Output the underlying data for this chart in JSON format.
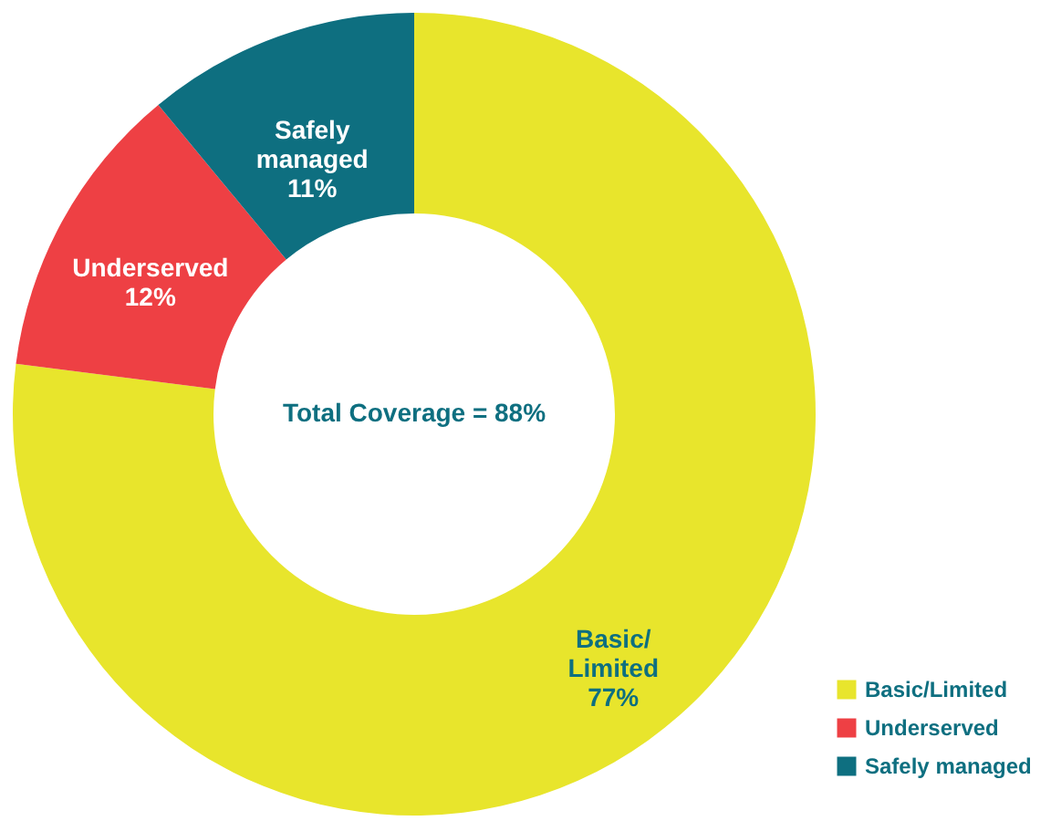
{
  "chart_data": {
    "type": "donut",
    "categories": [
      "Basic/Limited",
      "Underserved",
      "Safely managed"
    ],
    "values": [
      77,
      12,
      11
    ],
    "colors": [
      "#e8e52c",
      "#ee4044",
      "#0e6f80"
    ],
    "value_labels": [
      "77%",
      "12%",
      "11%"
    ],
    "annotations": [
      "Total Coverage = 88%"
    ],
    "legend": "bottom right"
  }
}
